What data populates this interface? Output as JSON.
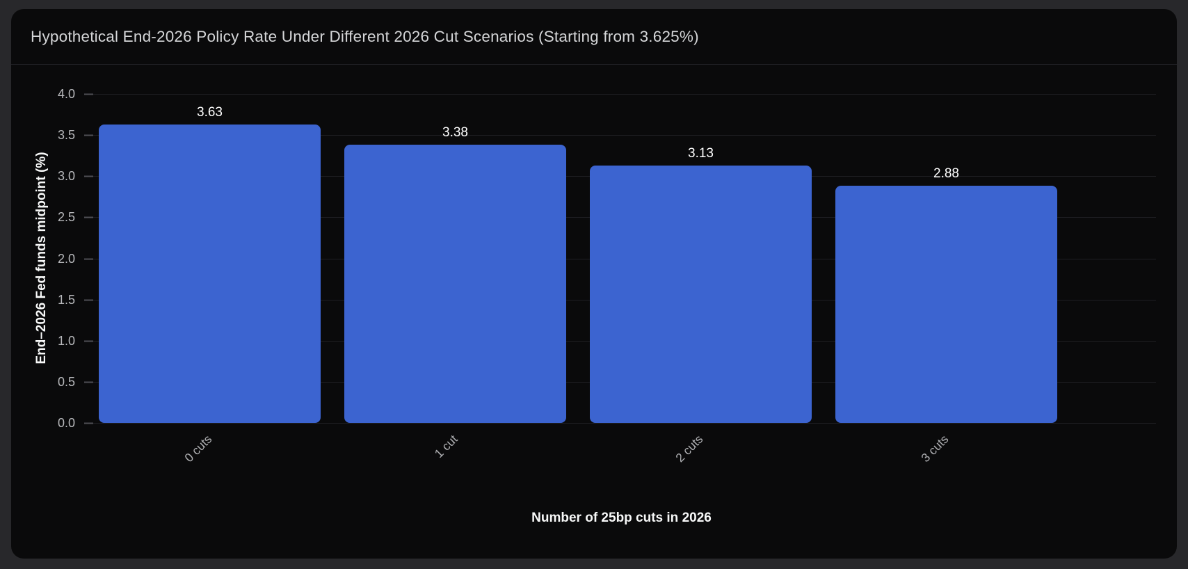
{
  "header": {
    "title": "Hypothetical End-2026 Policy Rate Under Different 2026 Cut Scenarios (Starting from 3.625%)"
  },
  "chart_data": {
    "type": "bar",
    "title": "Hypothetical End-2026 Policy Rate Under Different 2026 Cut Scenarios (Starting from 3.625%)",
    "categories": [
      "0 cuts",
      "1 cut",
      "2 cuts",
      "3 cuts"
    ],
    "values": [
      3.63,
      3.38,
      3.13,
      2.88
    ],
    "bar_labels": [
      "3.63",
      "3.38",
      "3.13",
      "2.88"
    ],
    "xlabel": "Number of 25bp cuts in 2026",
    "ylabel": "End–2026 Fed funds midpoint (%)",
    "ylim": [
      0,
      4
    ],
    "yticks": [
      "4.0",
      "3.5",
      "3.0",
      "2.5",
      "2.0",
      "1.5",
      "1.0",
      "0.5",
      "0.0"
    ],
    "grid": true,
    "legend": false,
    "colors": {
      "bar": "#3c64d0",
      "page_background": "#28282b",
      "card_background": "#0a0a0b",
      "gridline": "#1f1f23",
      "tick_text": "#b8b9bc",
      "title_text": "#d5d6d8",
      "label_text": "#ffffff"
    }
  }
}
